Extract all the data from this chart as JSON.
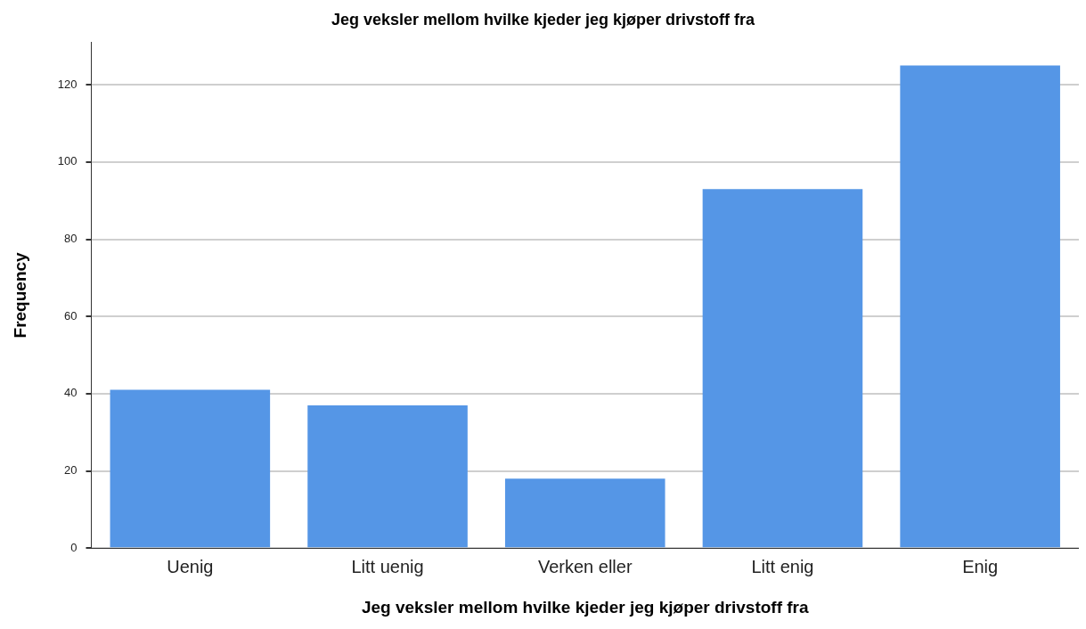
{
  "chart_data": {
    "type": "bar",
    "title": "Jeg veksler mellom hvilke kjeder jeg kjøper drivstoff fra",
    "xlabel": "Jeg veksler mellom hvilke kjeder jeg kjøper drivstoff fra",
    "ylabel": "Frequency",
    "categories": [
      "Uenig",
      "Litt uenig",
      "Verken eller",
      "Litt enig",
      "Enig"
    ],
    "values": [
      41,
      37,
      18,
      93,
      125
    ],
    "color": "#5596e6",
    "ylim": [
      0,
      131
    ],
    "yticks": [
      0,
      20,
      40,
      60,
      80,
      100,
      120
    ],
    "grid": "y"
  }
}
